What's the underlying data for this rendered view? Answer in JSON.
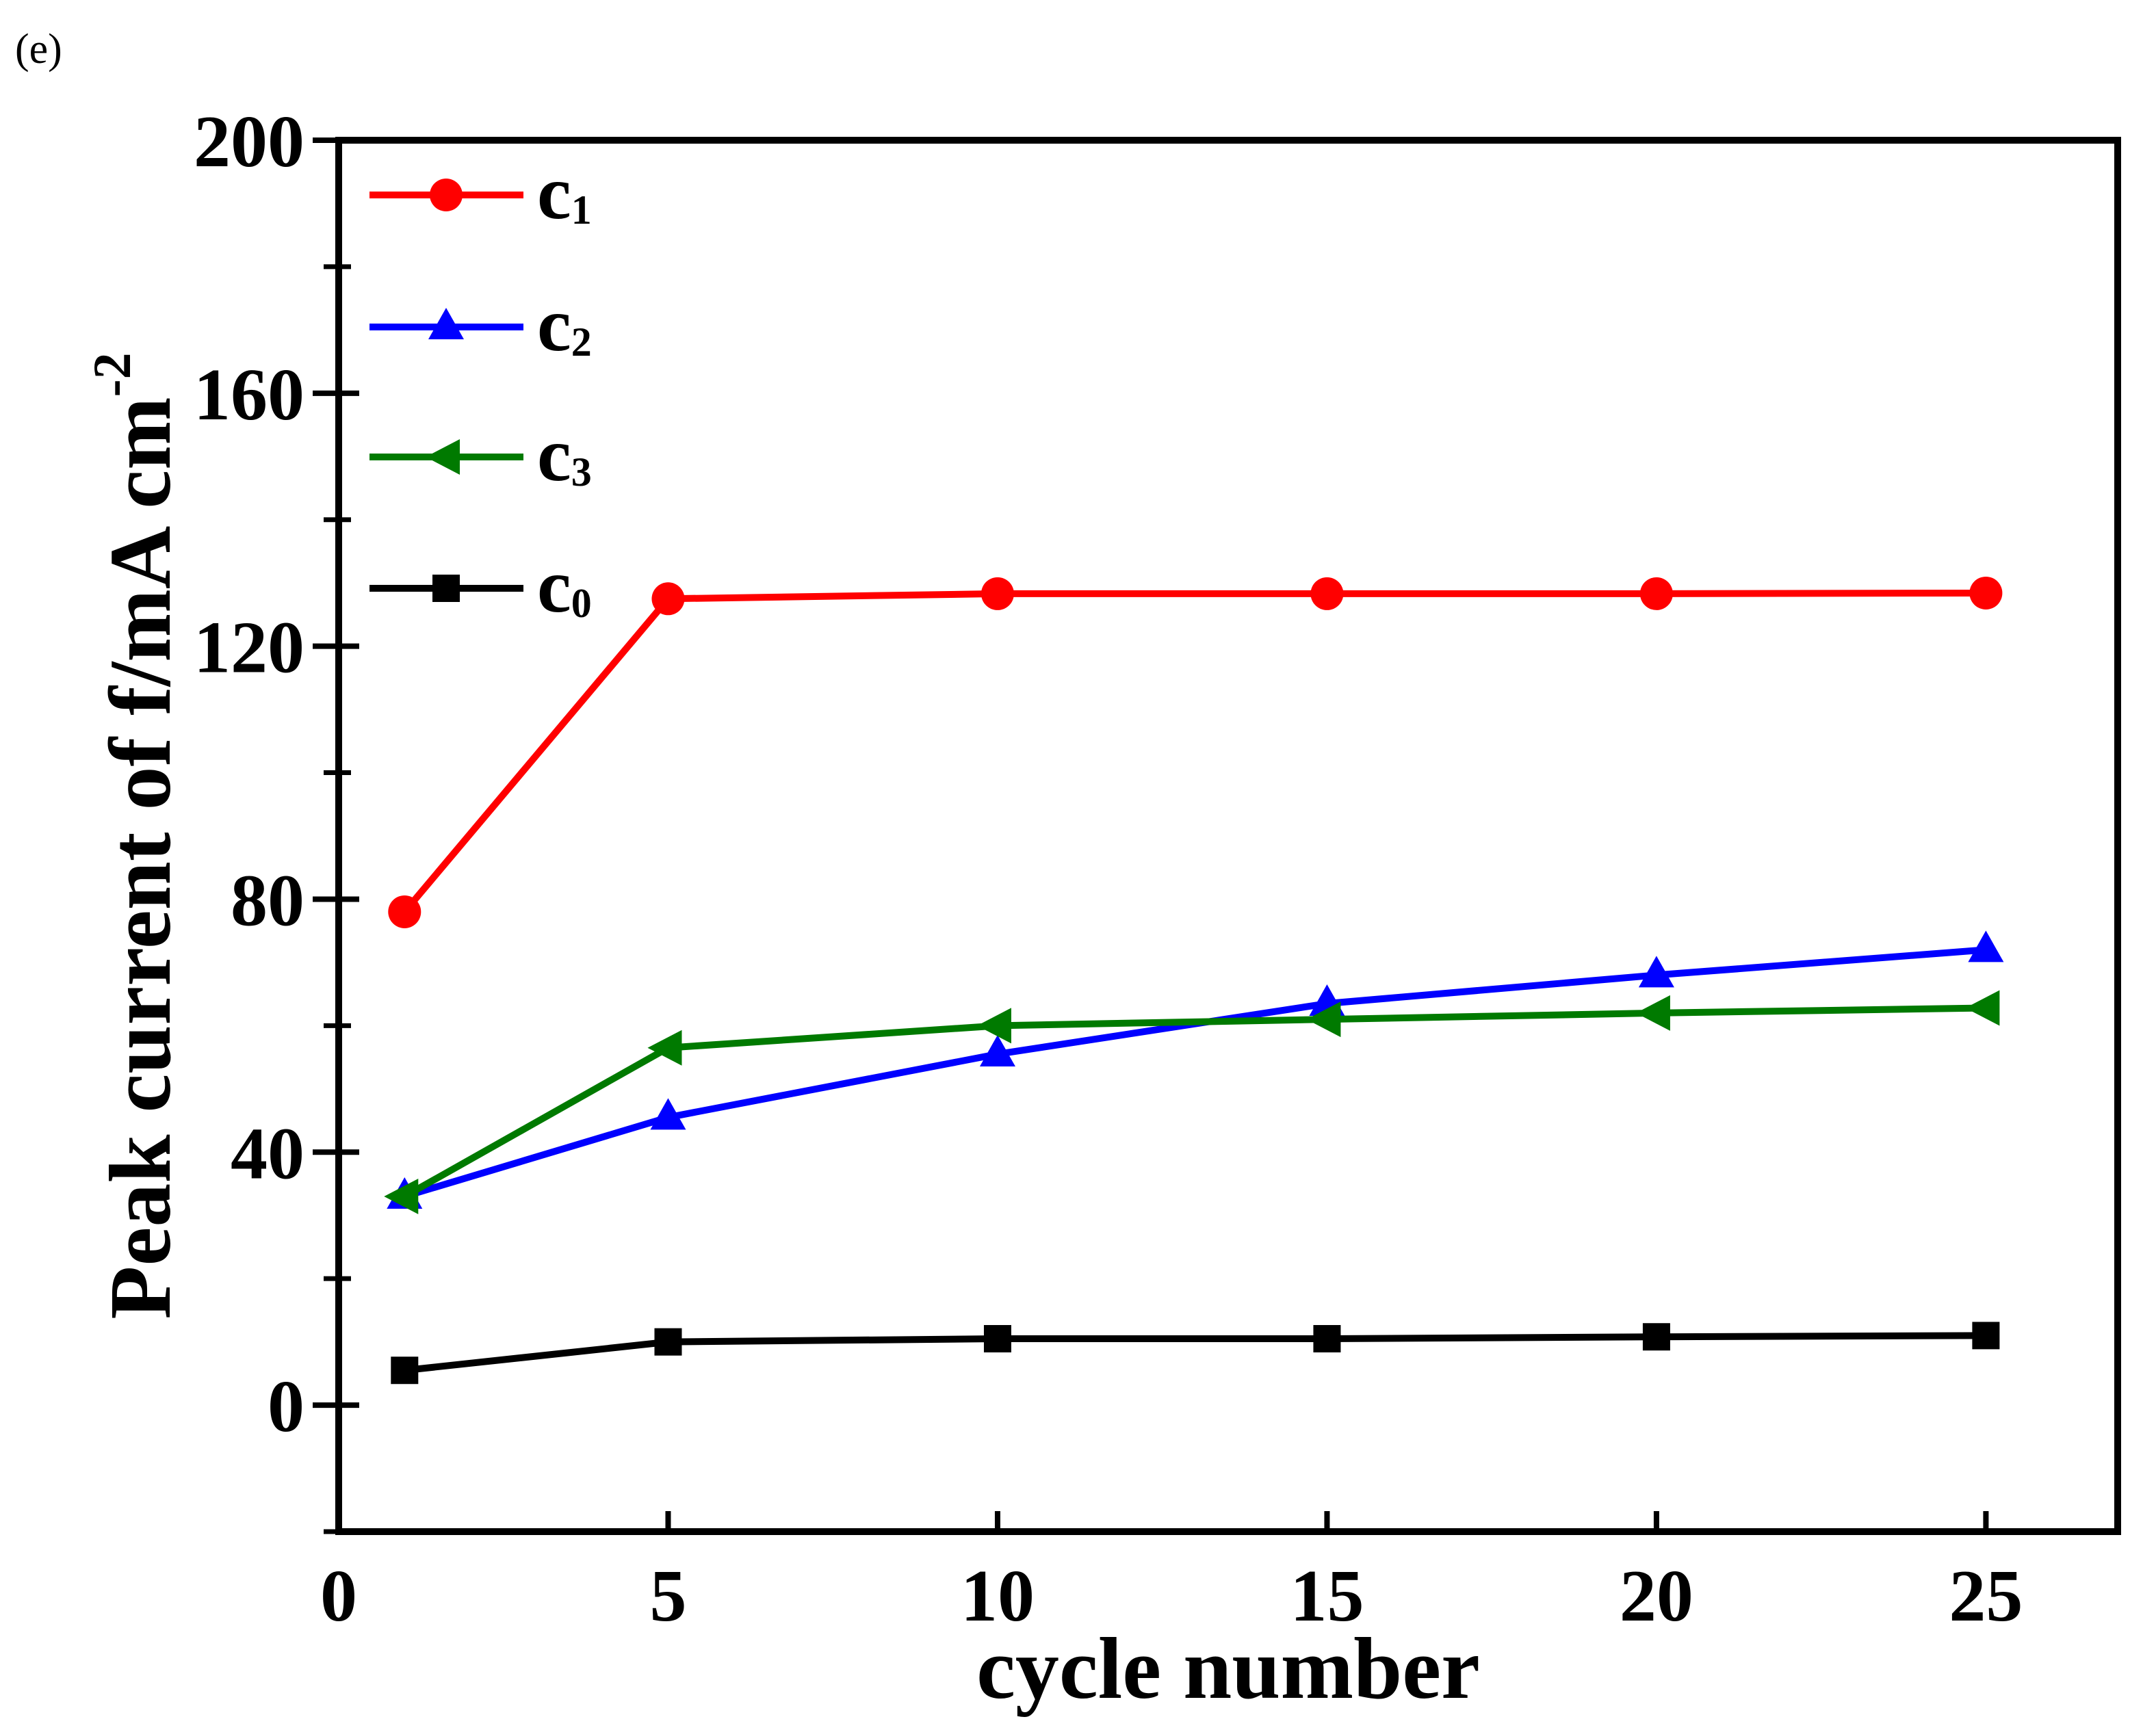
{
  "panel_label": "(e)",
  "chart_data": {
    "type": "line",
    "xlabel": "cycle number",
    "ylabel": "Peak current of f/mA cm",
    "ylabel_superscript": "-2",
    "xlim": [
      0,
      27
    ],
    "ylim": [
      -20,
      200
    ],
    "xticks": [
      "0",
      "5",
      "10",
      "15",
      "20",
      "25"
    ],
    "yticks": [
      "0",
      "40",
      "80",
      "120",
      "160",
      "200"
    ],
    "x": [
      1,
      5,
      10,
      15,
      20,
      25
    ],
    "legend_position": "top-left",
    "series": [
      {
        "name": "c1",
        "letter": "c",
        "subscript": "1",
        "color": "#ff0000",
        "marker": "circle",
        "values": [
          78,
          127.5,
          128.3,
          128.3,
          128.3,
          128.4
        ]
      },
      {
        "name": "c2",
        "letter": "c",
        "subscript": "2",
        "color": "#0000ff",
        "marker": "triangle-up",
        "values": [
          33,
          45.5,
          55.5,
          63.5,
          68,
          72
        ]
      },
      {
        "name": "c3",
        "letter": "c",
        "subscript": "3",
        "color": "#007a00",
        "marker": "triangle-left",
        "values": [
          33,
          56.5,
          60,
          61,
          62,
          62.8
        ]
      },
      {
        "name": "c0",
        "letter": "c",
        "subscript": "0",
        "color": "#000000",
        "marker": "square",
        "values": [
          5.5,
          10,
          10.5,
          10.5,
          10.8,
          11
        ]
      }
    ]
  }
}
